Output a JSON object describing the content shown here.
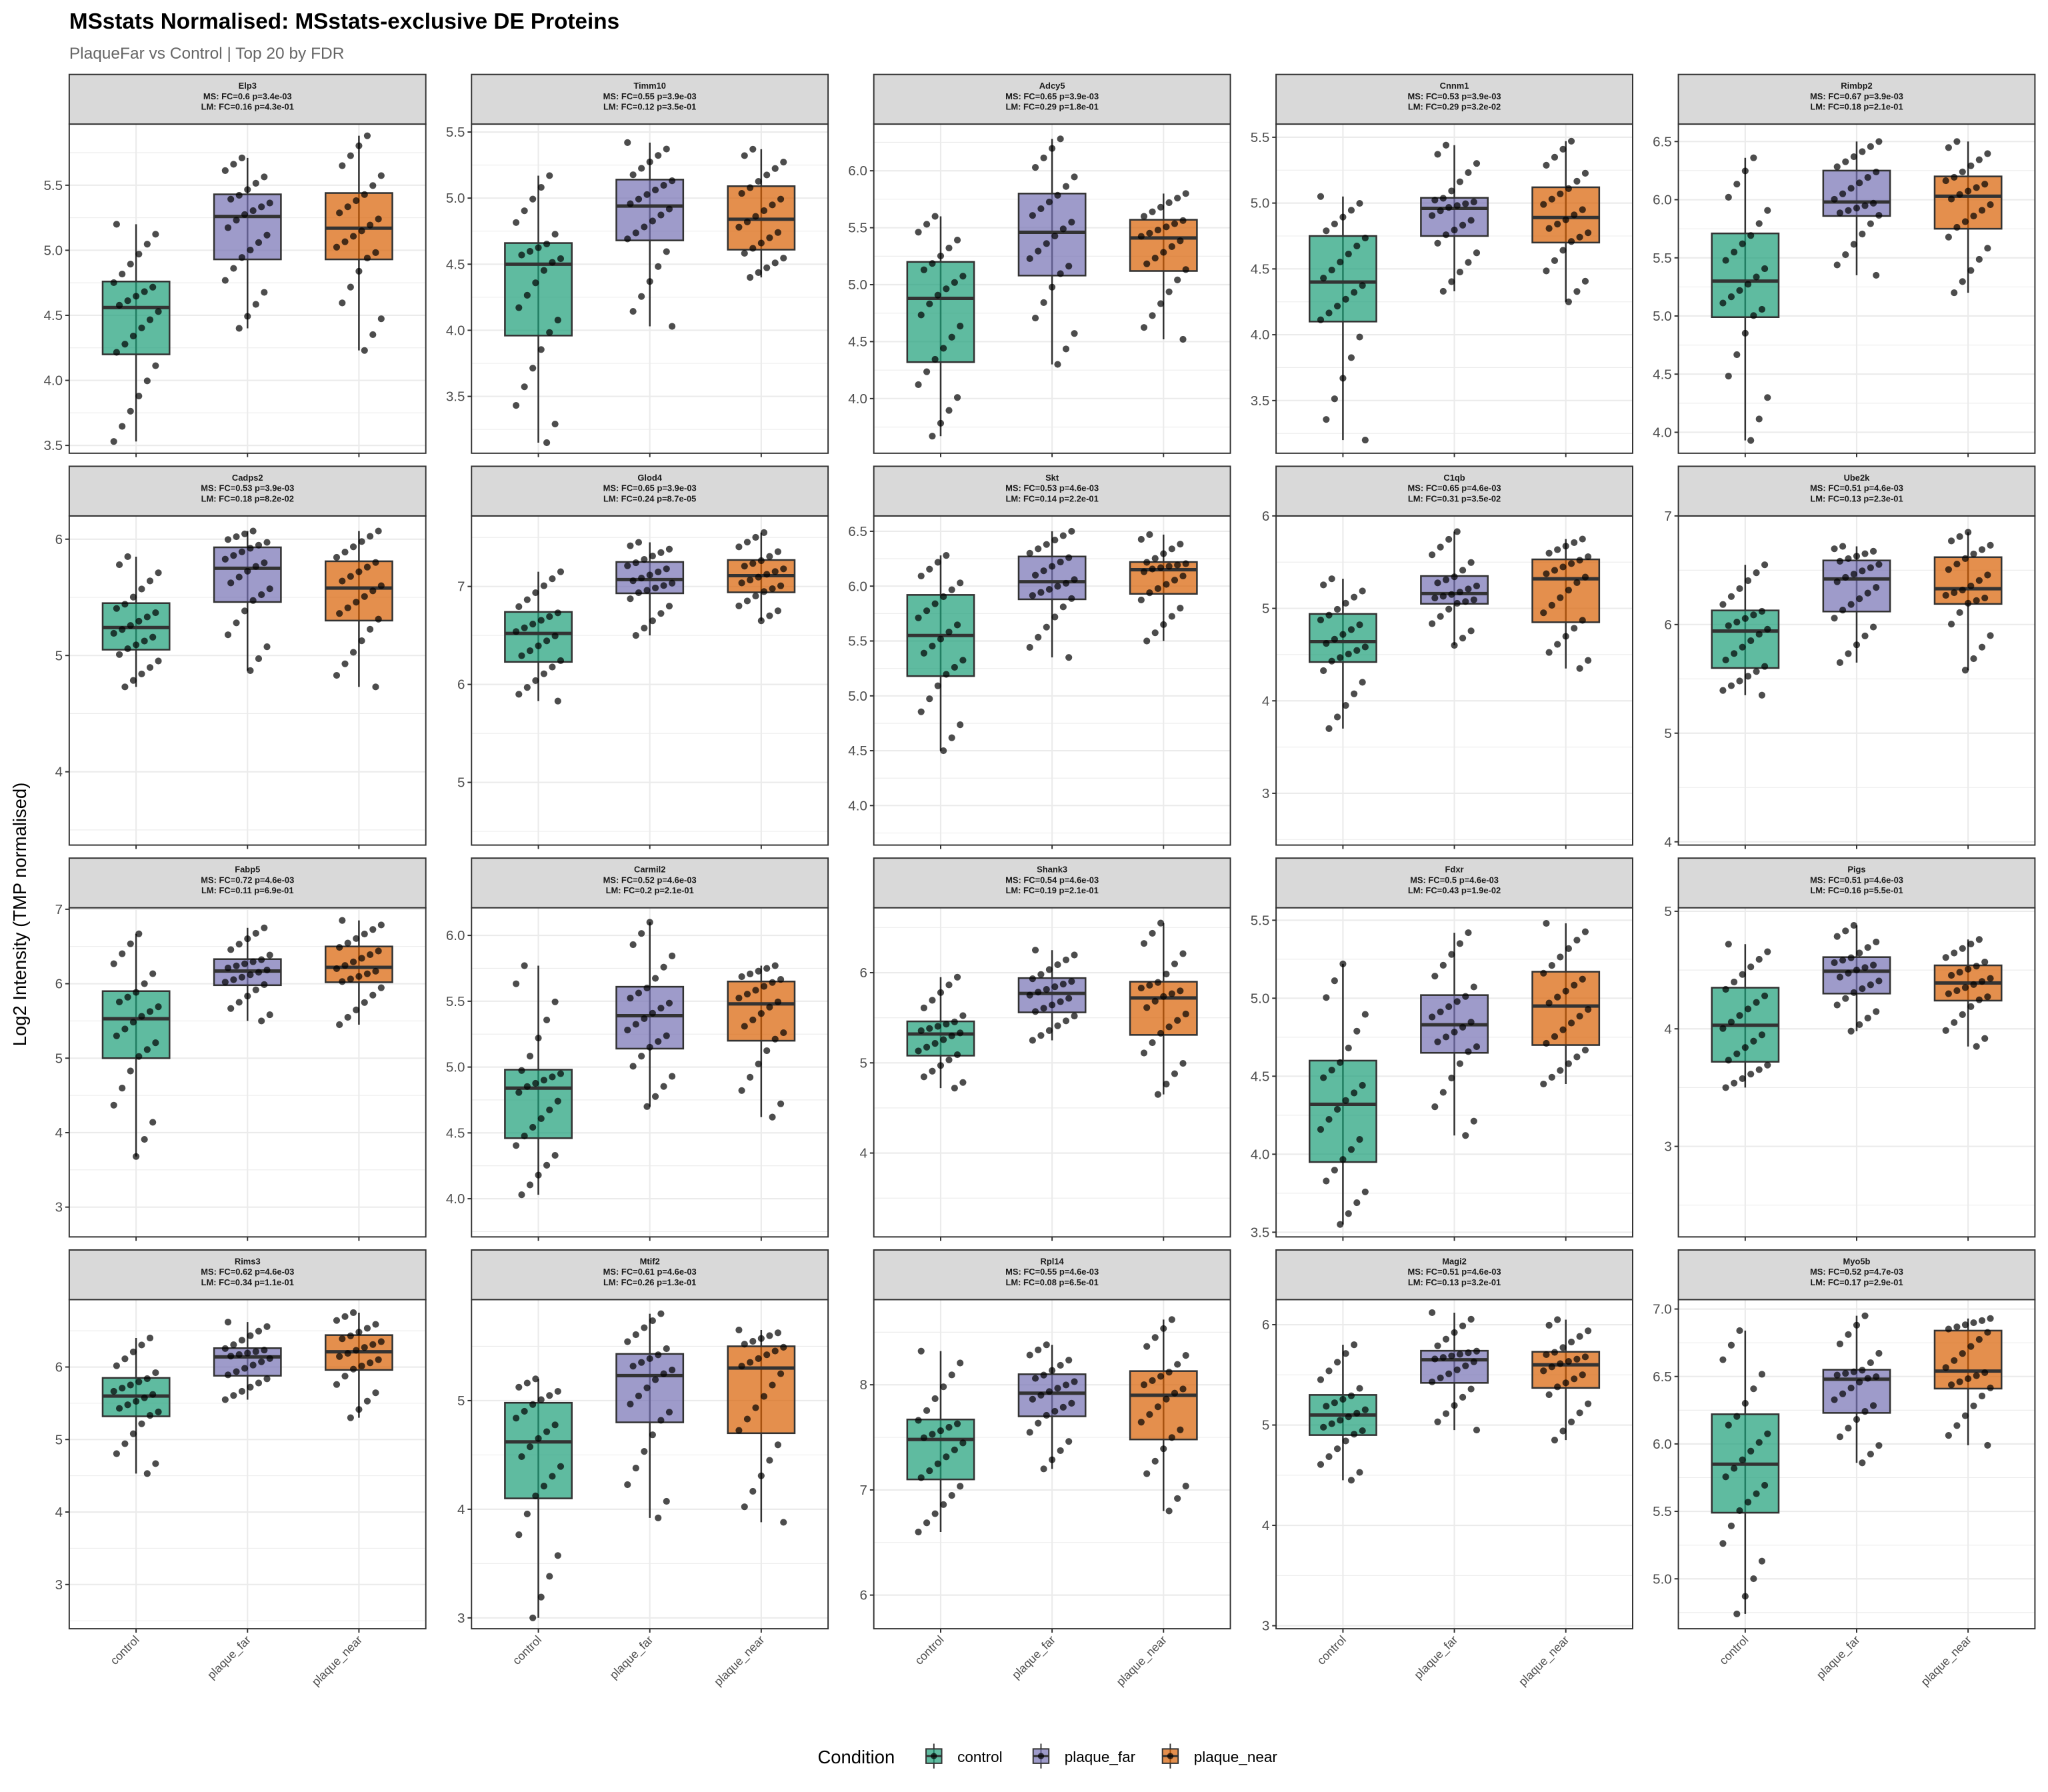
{
  "chart_data": {
    "type": "boxplot",
    "title": "MSstats Normalised: MSstats-exclusive DE Proteins",
    "subtitle": "PlaqueFar vs Control | Top 20 by FDR",
    "ylabel": "Log2 Intensity (TMP normalised)",
    "xlabel": "",
    "categories": [
      "control",
      "plaque_far",
      "plaque_near"
    ],
    "legend": {
      "title": "Condition",
      "position": "bottom",
      "items": [
        "control",
        "plaque_far",
        "plaque_near"
      ]
    },
    "colors": {
      "control": "#1b9e77",
      "plaque_far": "#7570b3",
      "plaque_near": "#d95f02"
    },
    "grid": true,
    "box_stats_order": [
      "whisker_low",
      "q1",
      "median",
      "q3",
      "whisker_high"
    ],
    "facets": [
      {
        "gene": "Elp3",
        "ms": "MS: FC=0.6 p=3.4e-03",
        "lm": "LM: FC=0.16 p=4.3e-01",
        "ylim": [
          3.44,
          5.97
        ],
        "yticks": [
          "3.5",
          "4.0",
          "4.5",
          "5.0",
          "5.5"
        ],
        "groups": {
          "control": [
            3.53,
            4.2,
            4.56,
            4.76,
            5.2
          ],
          "plaque_far": [
            4.4,
            4.93,
            5.26,
            5.43,
            5.71
          ],
          "plaque_near": [
            4.23,
            4.93,
            5.17,
            5.44,
            5.88
          ]
        }
      },
      {
        "gene": "Timm10",
        "ms": "MS: FC=0.55 p=3.9e-03",
        "lm": "LM: FC=0.12 p=3.5e-01",
        "ylim": [
          3.07,
          5.56
        ],
        "yticks": [
          "3.5",
          "4.0",
          "4.5",
          "5.0",
          "5.5"
        ],
        "groups": {
          "control": [
            3.15,
            3.96,
            4.5,
            4.66,
            5.17
          ],
          "plaque_far": [
            4.03,
            4.68,
            4.94,
            5.14,
            5.42
          ],
          "plaque_near": [
            4.4,
            4.61,
            4.84,
            5.09,
            5.37
          ]
        }
      },
      {
        "gene": "Adcy5",
        "ms": "MS: FC=0.65 p=3.9e-03",
        "lm": "LM: FC=0.29 p=1.8e-01",
        "ylim": [
          3.52,
          6.41
        ],
        "yticks": [
          "4.0",
          "4.5",
          "5.0",
          "5.5",
          "6.0"
        ],
        "groups": {
          "control": [
            3.67,
            4.32,
            4.88,
            5.2,
            5.6
          ],
          "plaque_far": [
            4.3,
            5.08,
            5.46,
            5.8,
            6.28
          ],
          "plaque_near": [
            4.52,
            5.12,
            5.41,
            5.57,
            5.8
          ]
        }
      },
      {
        "gene": "Cnnm1",
        "ms": "MS: FC=0.53 p=3.9e-03",
        "lm": "LM: FC=0.29 p=3.2e-02",
        "ylim": [
          3.1,
          5.6
        ],
        "yticks": [
          "3.5",
          "4.0",
          "4.5",
          "5.0",
          "5.5"
        ],
        "groups": {
          "control": [
            3.2,
            4.1,
            4.4,
            4.75,
            5.05
          ],
          "plaque_far": [
            4.33,
            4.75,
            4.96,
            5.04,
            5.44
          ],
          "plaque_near": [
            4.25,
            4.7,
            4.89,
            5.12,
            5.47
          ]
        }
      },
      {
        "gene": "Rimbp2",
        "ms": "MS: FC=0.67 p=3.9e-03",
        "lm": "LM: FC=0.18 p=2.1e-01",
        "ylim": [
          3.82,
          6.65
        ],
        "yticks": [
          "4.0",
          "4.5",
          "5.0",
          "5.5",
          "6.0",
          "6.5"
        ],
        "groups": {
          "control": [
            3.93,
            4.99,
            5.3,
            5.71,
            6.36
          ],
          "plaque_far": [
            5.35,
            5.86,
            5.98,
            6.25,
            6.5
          ],
          "plaque_near": [
            5.2,
            5.75,
            6.03,
            6.2,
            6.5
          ]
        }
      },
      {
        "gene": "Cadps2",
        "ms": "MS: FC=0.53 p=3.9e-03",
        "lm": "LM: FC=0.18 p=8.2e-02",
        "ylim": [
          3.37,
          6.2
        ],
        "yticks": [
          "4",
          "5",
          "6"
        ],
        "groups": {
          "control": [
            4.73,
            5.05,
            5.24,
            5.45,
            5.85
          ],
          "plaque_far": [
            4.87,
            5.46,
            5.75,
            5.93,
            6.07
          ],
          "plaque_near": [
            4.73,
            5.3,
            5.58,
            5.81,
            6.07
          ]
        }
      },
      {
        "gene": "Glod4",
        "ms": "MS: FC=0.65 p=3.9e-03",
        "lm": "LM: FC=0.24 p=8.7e-05",
        "ylim": [
          4.36,
          7.72
        ],
        "yticks": [
          "5",
          "6",
          "7"
        ],
        "groups": {
          "control": [
            5.83,
            6.23,
            6.52,
            6.74,
            7.15
          ],
          "plaque_far": [
            6.5,
            6.93,
            7.07,
            7.25,
            7.45
          ],
          "plaque_near": [
            6.65,
            6.94,
            7.11,
            7.27,
            7.55
          ]
        }
      },
      {
        "gene": "Skt",
        "ms": "MS: FC=0.53 p=4.6e-03",
        "lm": "LM: FC=0.14 p=2.2e-01",
        "ylim": [
          3.64,
          6.64
        ],
        "yticks": [
          "4.0",
          "4.5",
          "5.0",
          "5.5",
          "6.0",
          "6.5"
        ],
        "groups": {
          "control": [
            4.5,
            5.18,
            5.55,
            5.92,
            6.28
          ],
          "plaque_far": [
            5.35,
            5.88,
            6.04,
            6.27,
            6.5
          ],
          "plaque_near": [
            5.5,
            5.93,
            6.15,
            6.22,
            6.47
          ]
        }
      },
      {
        "gene": "C1qb",
        "ms": "MS: FC=0.65 p=4.6e-03",
        "lm": "LM: FC=0.31 p=3.5e-02",
        "ylim": [
          2.44,
          6.0
        ],
        "yticks": [
          "3",
          "4",
          "5",
          "6"
        ],
        "groups": {
          "control": [
            3.7,
            4.42,
            4.64,
            4.94,
            5.32
          ],
          "plaque_far": [
            4.6,
            5.05,
            5.16,
            5.35,
            5.83
          ],
          "plaque_near": [
            4.35,
            4.85,
            5.32,
            5.53,
            5.75
          ]
        }
      },
      {
        "gene": "Ube2k",
        "ms": "MS: FC=0.51 p=4.6e-03",
        "lm": "LM: FC=0.13 p=2.3e-01",
        "ylim": [
          3.97,
          7.0
        ],
        "yticks": [
          "4",
          "5",
          "6",
          "7"
        ],
        "groups": {
          "control": [
            5.35,
            5.6,
            5.94,
            6.13,
            6.55
          ],
          "plaque_far": [
            5.65,
            6.12,
            6.42,
            6.59,
            6.72
          ],
          "plaque_near": [
            5.58,
            6.19,
            6.33,
            6.62,
            6.85
          ]
        }
      },
      {
        "gene": "Fabp5",
        "ms": "MS: FC=0.72 p=4.6e-03",
        "lm": "LM: FC=0.11 p=6.9e-01",
        "ylim": [
          2.6,
          7.02
        ],
        "yticks": [
          "3",
          "4",
          "5",
          "6",
          "7"
        ],
        "groups": {
          "control": [
            3.68,
            5.0,
            5.53,
            5.9,
            6.67
          ],
          "plaque_far": [
            5.5,
            5.98,
            6.17,
            6.33,
            6.75
          ],
          "plaque_near": [
            5.45,
            6.02,
            6.22,
            6.5,
            6.85
          ]
        }
      },
      {
        "gene": "Carmil2",
        "ms": "MS: FC=0.52 p=4.6e-03",
        "lm": "LM: FC=0.2 p=2.1e-01",
        "ylim": [
          3.71,
          6.21
        ],
        "yticks": [
          "4.0",
          "4.5",
          "5.0",
          "5.5",
          "6.0"
        ],
        "groups": {
          "control": [
            4.03,
            4.46,
            4.84,
            4.98,
            5.77
          ],
          "plaque_far": [
            4.7,
            5.14,
            5.39,
            5.61,
            6.1
          ],
          "plaque_near": [
            4.62,
            5.2,
            5.48,
            5.65,
            5.77
          ]
        }
      },
      {
        "gene": "Shank3",
        "ms": "MS: FC=0.54 p=4.6e-03",
        "lm": "LM: FC=0.19 p=2.1e-01",
        "ylim": [
          3.07,
          6.72
        ],
        "yticks": [
          "4",
          "5",
          "6"
        ],
        "groups": {
          "control": [
            4.72,
            5.08,
            5.32,
            5.46,
            5.95
          ],
          "plaque_far": [
            5.25,
            5.56,
            5.77,
            5.94,
            6.25
          ],
          "plaque_near": [
            4.65,
            5.31,
            5.72,
            5.9,
            6.55
          ]
        }
      },
      {
        "gene": "Fdxr",
        "ms": "MS: FC=0.5 p=4.6e-03",
        "lm": "LM: FC=0.43 p=1.9e-02",
        "ylim": [
          3.47,
          5.58
        ],
        "yticks": [
          "3.5",
          "4.0",
          "4.5",
          "5.0",
          "5.5"
        ],
        "groups": {
          "control": [
            3.55,
            3.95,
            4.32,
            4.6,
            5.22
          ],
          "plaque_far": [
            4.12,
            4.65,
            4.83,
            5.02,
            5.42
          ],
          "plaque_near": [
            4.45,
            4.7,
            4.95,
            5.17,
            5.48
          ]
        }
      },
      {
        "gene": "Pigs",
        "ms": "MS: FC=0.51 p=4.6e-03",
        "lm": "LM: FC=0.16 p=5.5e-01",
        "ylim": [
          2.23,
          5.03
        ],
        "yticks": [
          "3",
          "4",
          "5"
        ],
        "groups": {
          "control": [
            3.5,
            3.72,
            4.03,
            4.35,
            4.72
          ],
          "plaque_far": [
            3.98,
            4.3,
            4.49,
            4.61,
            4.88
          ],
          "plaque_near": [
            3.85,
            4.24,
            4.39,
            4.54,
            4.76
          ]
        }
      },
      {
        "gene": "Rims3",
        "ms": "MS: FC=0.62 p=4.6e-03",
        "lm": "LM: FC=0.34 p=1.1e-01",
        "ylim": [
          2.39,
          6.93
        ],
        "yticks": [
          "3",
          "4",
          "5",
          "6"
        ],
        "groups": {
          "control": [
            4.53,
            5.32,
            5.6,
            5.85,
            6.4
          ],
          "plaque_far": [
            5.55,
            5.88,
            6.14,
            6.26,
            6.62
          ],
          "plaque_near": [
            5.3,
            5.96,
            6.21,
            6.44,
            6.75
          ]
        }
      },
      {
        "gene": "Mtif2",
        "ms": "MS: FC=0.61 p=4.6e-03",
        "lm": "LM: FC=0.26 p=1.3e-01",
        "ylim": [
          2.9,
          5.93
        ],
        "yticks": [
          "3",
          "4",
          "5"
        ],
        "groups": {
          "control": [
            3.0,
            4.1,
            4.62,
            4.98,
            5.2
          ],
          "plaque_far": [
            3.92,
            4.8,
            5.23,
            5.43,
            5.8
          ],
          "plaque_near": [
            3.88,
            4.7,
            5.3,
            5.5,
            5.65
          ]
        }
      },
      {
        "gene": "Rpl14",
        "ms": "MS: FC=0.55 p=4.6e-03",
        "lm": "LM: FC=0.08 p=6.5e-01",
        "ylim": [
          5.68,
          8.81
        ],
        "yticks": [
          "6",
          "7",
          "8"
        ],
        "groups": {
          "control": [
            6.6,
            7.1,
            7.48,
            7.67,
            8.32
          ],
          "plaque_far": [
            7.2,
            7.7,
            7.92,
            8.1,
            8.38
          ],
          "plaque_near": [
            6.8,
            7.48,
            7.9,
            8.13,
            8.62
          ]
        }
      },
      {
        "gene": "Magi2",
        "ms": "MS: FC=0.51 p=4.6e-03",
        "lm": "LM: FC=0.13 p=3.2e-01",
        "ylim": [
          2.97,
          6.25
        ],
        "yticks": [
          "3",
          "4",
          "5",
          "6"
        ],
        "groups": {
          "control": [
            4.45,
            4.9,
            5.1,
            5.3,
            5.8
          ],
          "plaque_far": [
            4.95,
            5.42,
            5.65,
            5.74,
            6.12
          ],
          "plaque_near": [
            4.85,
            5.37,
            5.6,
            5.73,
            6.05
          ]
        }
      },
      {
        "gene": "Myo5b",
        "ms": "MS: FC=0.52 p=4.7e-03",
        "lm": "LM: FC=0.17 p=2.9e-01",
        "ylim": [
          4.63,
          7.07
        ],
        "yticks": [
          "5.0",
          "5.5",
          "6.0",
          "6.5",
          "7.0"
        ],
        "groups": {
          "control": [
            4.74,
            5.49,
            5.85,
            6.22,
            6.84
          ],
          "plaque_far": [
            5.86,
            6.23,
            6.48,
            6.55,
            6.95
          ],
          "plaque_near": [
            5.99,
            6.41,
            6.54,
            6.84,
            6.93
          ]
        }
      }
    ]
  }
}
